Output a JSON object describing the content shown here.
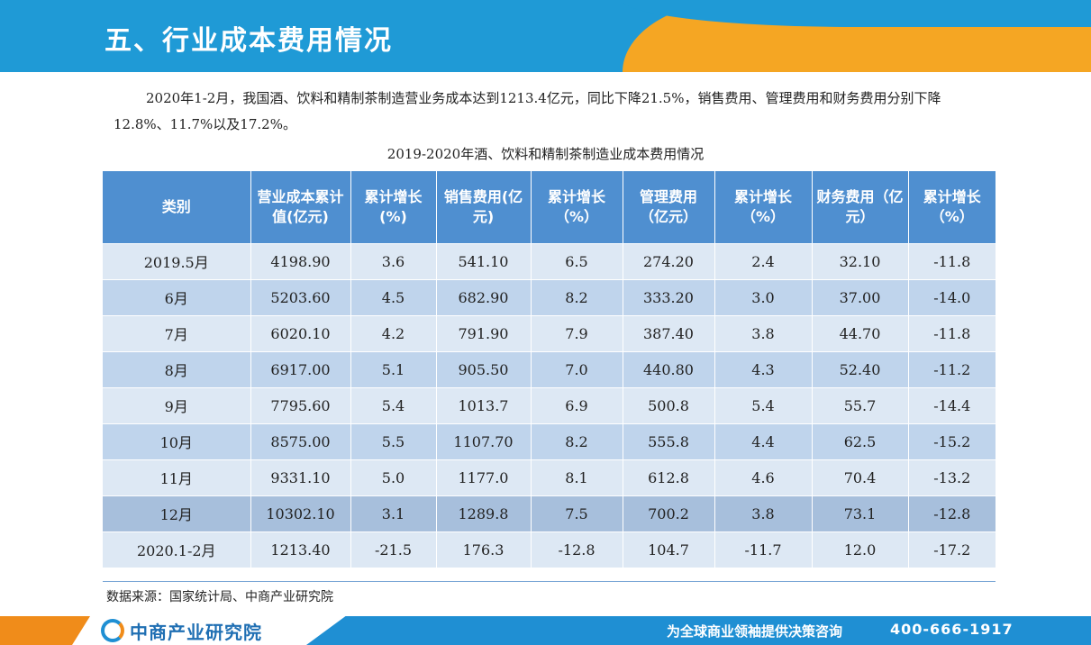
{
  "header": {
    "title": "五、行业成本费用情况"
  },
  "intro": {
    "text": "2020年1-2月，我国酒、饮料和精制茶制造营业务成本达到1213.4亿元，同比下降21.5%，销售费用、管理费用和财务费用分别下降12.8%、11.7%以及17.2%。"
  },
  "caption": "2019-2020年酒、饮料和精制茶制造业成本费用情况",
  "table": {
    "headers": [
      "类别",
      "营业成本累计值(亿元)",
      "累计增长(%)",
      "销售费用(亿元)",
      "累计增长（%）",
      "管理费用（亿元）",
      "累计增长（%）",
      "财务费用（亿元）",
      "累计增长（%）"
    ],
    "rows": [
      [
        "2019.5月",
        "4198.90",
        "3.6",
        "541.10",
        "6.5",
        "274.20",
        "2.4",
        "32.10",
        "-11.8"
      ],
      [
        "6月",
        "5203.60",
        "4.5",
        "682.90",
        "8.2",
        "333.20",
        "3.0",
        "37.00",
        "-14.0"
      ],
      [
        "7月",
        "6020.10",
        "4.2",
        "791.90",
        "7.9",
        "387.40",
        "3.8",
        "44.70",
        "-11.8"
      ],
      [
        "8月",
        "6917.00",
        "5.1",
        "905.50",
        "7.0",
        "440.80",
        "4.3",
        "52.40",
        "-11.2"
      ],
      [
        "9月",
        "7795.60",
        "5.4",
        "1013.7",
        "6.9",
        "500.8",
        "5.4",
        "55.7",
        "-14.4"
      ],
      [
        "10月",
        "8575.00",
        "5.5",
        "1107.70",
        "8.2",
        "555.8",
        "4.4",
        "62.5",
        "-15.2"
      ],
      [
        "11月",
        "9331.10",
        "5.0",
        "1177.0",
        "8.1",
        "612.8",
        "4.6",
        "70.4",
        "-13.2"
      ],
      [
        "12月",
        "10302.10",
        "3.1",
        "1289.8",
        "7.5",
        "700.2",
        "3.8",
        "73.1",
        "-12.8"
      ],
      [
        "2020.1-2月",
        "1213.40",
        "-21.5",
        "176.3",
        "-12.8",
        "104.7",
        "-11.7",
        "12.0",
        "-17.2"
      ]
    ]
  },
  "source": "数据来源：国家统计局、中商产业研究院",
  "footer": {
    "logo_text": "中商产业研究院",
    "slogan": "为全球商业领袖提供决策咨询",
    "phone": "400-666-1917"
  },
  "colors": {
    "brand_blue": "#1f9ad6",
    "brand_orange": "#f5a623",
    "table_header": "#4f8fd0"
  }
}
